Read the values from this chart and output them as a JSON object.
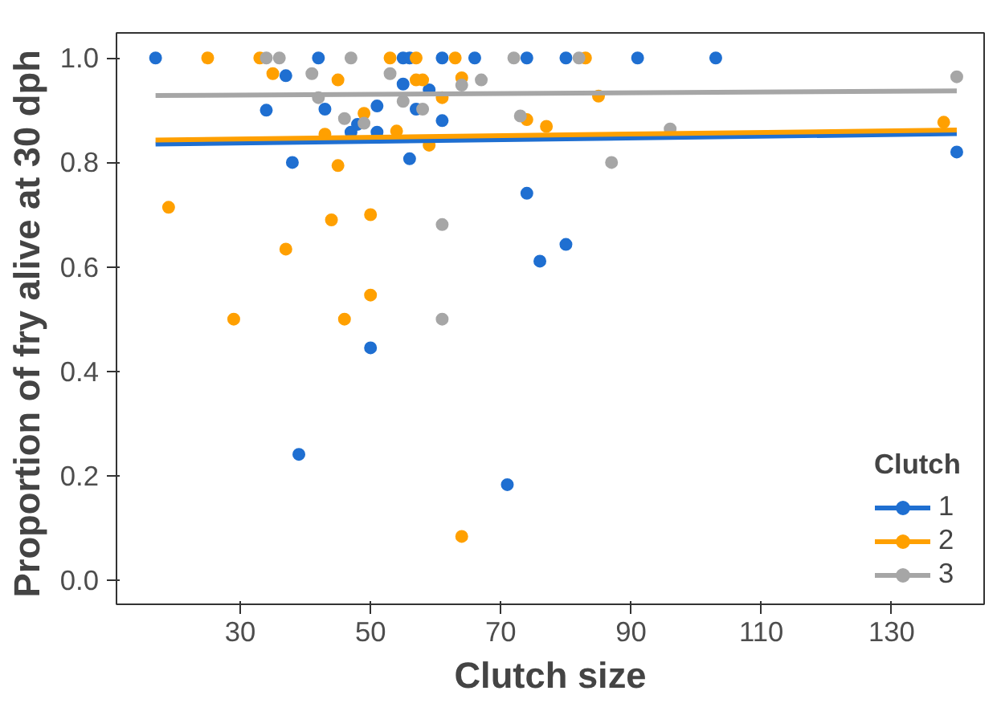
{
  "chart_data": {
    "type": "scatter",
    "xlabel": "Clutch size",
    "ylabel": "Proportion of fry alive at  30 dph",
    "legend_title": "Clutch",
    "legend": "bottom right",
    "grid": false,
    "xlim": [
      11,
      144.2
    ],
    "xticks": [
      30,
      50,
      70,
      90,
      110,
      130
    ],
    "ylim": [
      -0.046,
      1.048
    ],
    "yticks": [
      {
        "value": 0,
        "label": "0.0"
      },
      0.2,
      0.4,
      0.6,
      0.8,
      {
        "value": 1,
        "label": "1.0"
      }
    ],
    "series": [
      {
        "name": "1",
        "color": "#1f6fd1",
        "marker": "circle",
        "x": [
          17,
          34,
          37,
          38,
          39,
          42,
          43,
          47,
          48,
          50,
          51,
          51,
          55,
          55,
          56,
          56,
          57,
          59,
          61,
          61,
          66,
          71,
          74,
          74,
          76,
          80,
          80,
          91,
          103,
          140
        ],
        "values": [
          1.0,
          0.9,
          0.966,
          0.8,
          0.241,
          1.0,
          0.902,
          0.858,
          0.873,
          0.445,
          0.908,
          0.858,
          0.95,
          1.0,
          1.0,
          0.807,
          0.902,
          0.939,
          1.0,
          0.88,
          1.0,
          0.183,
          1.0,
          0.741,
          0.611,
          1.0,
          0.643,
          1.0,
          1.0,
          0.82
        ]
      },
      {
        "name": "2",
        "color": "#ffa000",
        "marker": "circle",
        "x": [
          19,
          25,
          29,
          33,
          35,
          37,
          43,
          44,
          45,
          45,
          46,
          49,
          50,
          50,
          53,
          54,
          57,
          57,
          58,
          59,
          61,
          63,
          64,
          64,
          74,
          77,
          83,
          85,
          138
        ],
        "values": [
          0.714,
          1.0,
          0.5,
          1.0,
          0.97,
          0.634,
          0.854,
          0.69,
          0.958,
          0.794,
          0.5,
          0.894,
          0.7,
          0.546,
          1.0,
          0.86,
          1.0,
          0.958,
          0.958,
          0.833,
          0.924,
          1.0,
          0.962,
          0.084,
          0.882,
          0.869,
          1.0,
          0.927,
          0.877
        ]
      },
      {
        "name": "3",
        "color": "#a6a6a6",
        "marker": "circle",
        "x": [
          34,
          36,
          41,
          42,
          46,
          47,
          49,
          53,
          55,
          58,
          61,
          61,
          64,
          67,
          72,
          73,
          82,
          87,
          96,
          140
        ],
        "values": [
          1.0,
          1.0,
          0.97,
          0.924,
          0.884,
          1.0,
          0.875,
          0.97,
          0.917,
          0.902,
          0.681,
          0.5,
          0.948,
          0.958,
          1.0,
          0.889,
          1.0,
          0.8,
          0.864,
          0.964
        ]
      },
      {
        "type": "line",
        "marker": "none",
        "color": "#1f6fd1",
        "x": [
          17,
          140
        ],
        "values": [
          0.835,
          0.855
        ]
      },
      {
        "type": "line",
        "marker": "none",
        "color": "#ffa000",
        "x": [
          17,
          140
        ],
        "values": [
          0.843,
          0.862
        ]
      },
      {
        "type": "line",
        "marker": "none",
        "color": "#a6a6a6",
        "x": [
          17,
          140
        ],
        "values": [
          0.928,
          0.937
        ]
      }
    ]
  }
}
